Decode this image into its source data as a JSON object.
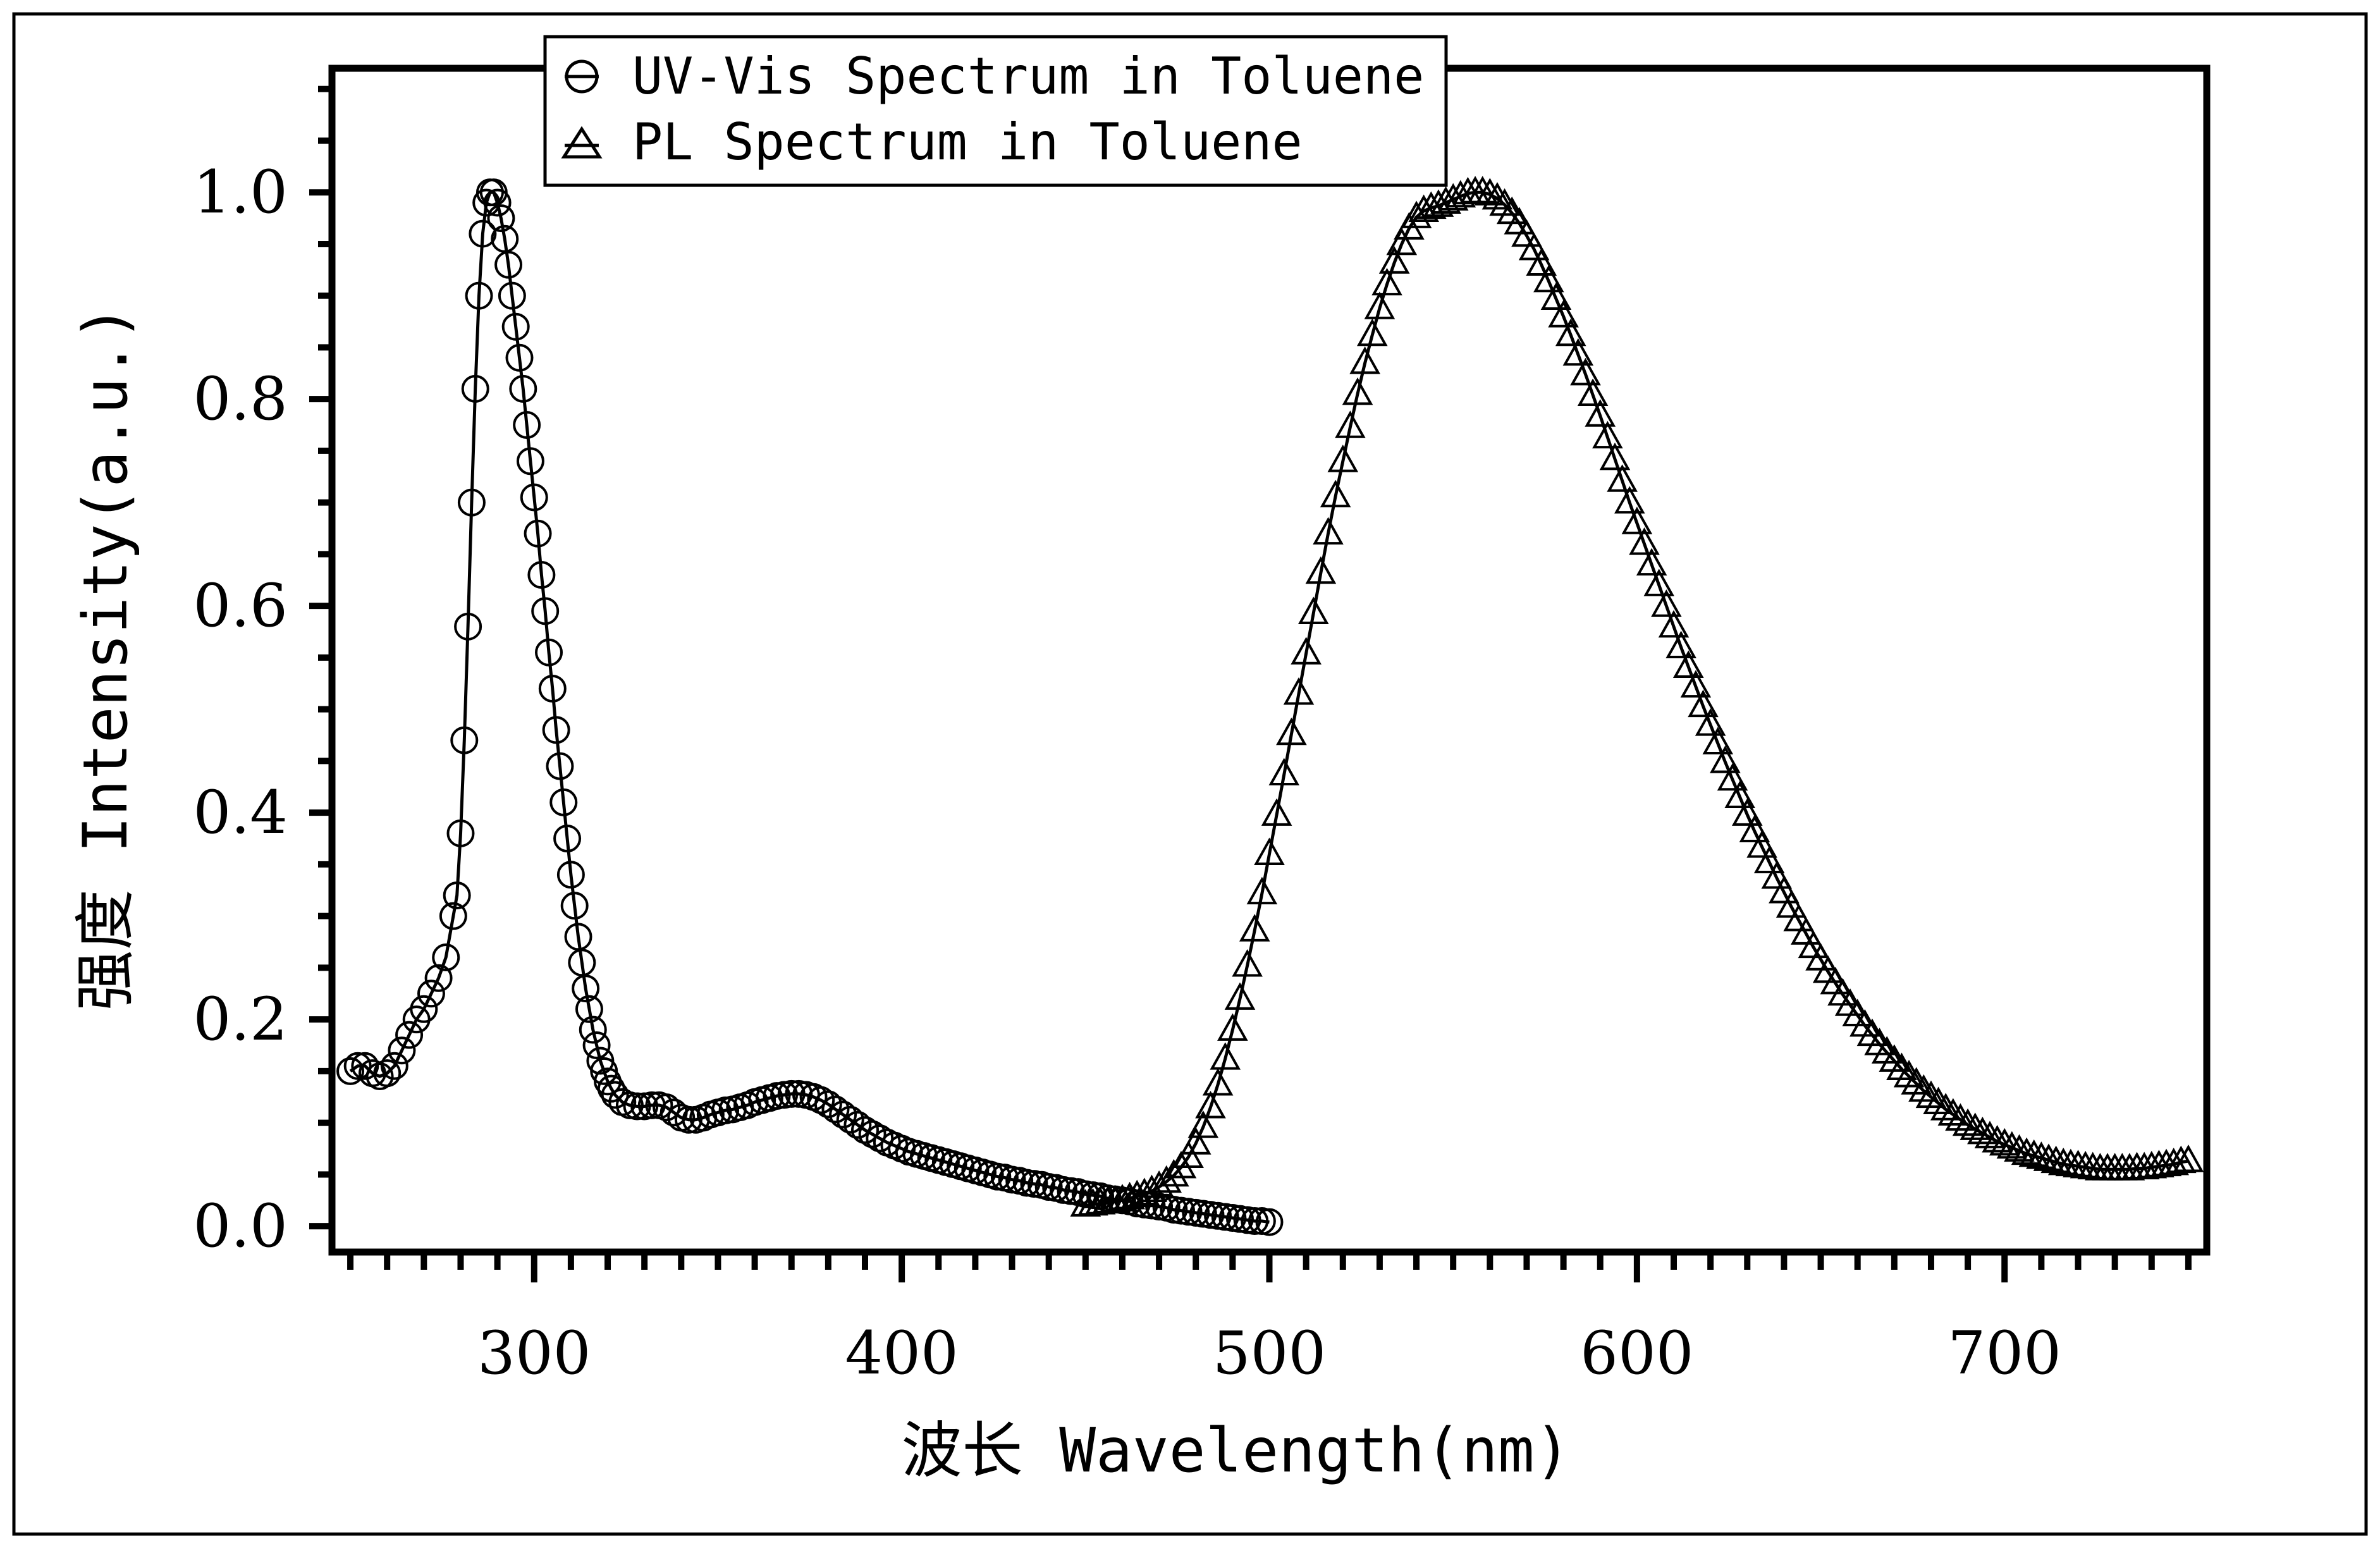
{
  "chart_data": {
    "type": "line",
    "xlabel": "波长 Wavelength(nm)",
    "ylabel": "强度 Intensity(a.u.)",
    "xlim": [
      245,
      755
    ],
    "ylim": [
      -0.025,
      1.12
    ],
    "x_ticks": [
      300,
      400,
      500,
      600,
      700
    ],
    "y_ticks": [
      0.0,
      0.2,
      0.4,
      0.6,
      0.8,
      1.0
    ],
    "x_tick_labels": [
      "300",
      "400",
      "500",
      "600",
      "700"
    ],
    "y_tick_labels": [
      "0.0",
      "0.2",
      "0.4",
      "0.6",
      "0.8",
      "1.0"
    ],
    "grid": false,
    "legend_position": "top-left",
    "series": [
      {
        "name": "UV-Vis Spectrum in Toluene",
        "marker": "circle",
        "color": "#000000",
        "x": [
          250,
          252,
          254,
          256,
          258,
          260,
          262,
          264,
          266,
          268,
          270,
          272,
          274,
          276,
          278,
          279,
          280,
          281,
          282,
          283,
          284,
          285,
          286,
          287,
          288,
          289,
          290,
          291,
          292,
          293,
          294,
          295,
          296,
          297,
          298,
          299,
          300,
          301,
          302,
          303,
          304,
          305,
          306,
          307,
          308,
          309,
          310,
          311,
          312,
          313,
          314,
          315,
          316,
          317,
          318,
          319,
          320,
          321,
          322,
          324,
          326,
          328,
          330,
          332,
          334,
          336,
          338,
          340,
          342,
          344,
          346,
          348,
          350,
          352,
          354,
          356,
          358,
          360,
          362,
          364,
          366,
          368,
          370,
          372,
          374,
          376,
          378,
          380,
          382,
          384,
          386,
          388,
          390,
          392,
          394,
          396,
          398,
          400,
          402,
          404,
          406,
          408,
          410,
          412,
          414,
          416,
          418,
          420,
          422,
          424,
          426,
          428,
          430,
          432,
          434,
          436,
          438,
          440,
          442,
          444,
          446,
          448,
          450,
          452,
          454,
          456,
          458,
          460,
          462,
          464,
          466,
          468,
          470,
          472,
          474,
          476,
          478,
          480,
          482,
          484,
          486,
          488,
          490,
          492,
          494,
          496,
          498,
          500
        ],
        "y": [
          0.15,
          0.155,
          0.155,
          0.148,
          0.145,
          0.148,
          0.155,
          0.17,
          0.185,
          0.2,
          0.21,
          0.225,
          0.24,
          0.26,
          0.3,
          0.32,
          0.38,
          0.47,
          0.58,
          0.7,
          0.81,
          0.9,
          0.96,
          0.99,
          1.0,
          1.0,
          0.99,
          0.975,
          0.955,
          0.93,
          0.9,
          0.87,
          0.84,
          0.81,
          0.775,
          0.74,
          0.705,
          0.67,
          0.63,
          0.595,
          0.555,
          0.52,
          0.48,
          0.445,
          0.41,
          0.375,
          0.34,
          0.31,
          0.28,
          0.255,
          0.23,
          0.21,
          0.19,
          0.175,
          0.16,
          0.15,
          0.14,
          0.133,
          0.127,
          0.12,
          0.117,
          0.116,
          0.116,
          0.117,
          0.117,
          0.115,
          0.11,
          0.105,
          0.103,
          0.103,
          0.105,
          0.108,
          0.11,
          0.112,
          0.113,
          0.115,
          0.117,
          0.12,
          0.122,
          0.124,
          0.126,
          0.127,
          0.128,
          0.128,
          0.127,
          0.125,
          0.122,
          0.118,
          0.113,
          0.108,
          0.103,
          0.098,
          0.093,
          0.089,
          0.085,
          0.081,
          0.078,
          0.075,
          0.072,
          0.07,
          0.068,
          0.066,
          0.064,
          0.062,
          0.06,
          0.058,
          0.056,
          0.054,
          0.052,
          0.05,
          0.048,
          0.047,
          0.045,
          0.044,
          0.042,
          0.041,
          0.04,
          0.038,
          0.037,
          0.035,
          0.034,
          0.033,
          0.031,
          0.03,
          0.029,
          0.027,
          0.026,
          0.025,
          0.024,
          0.022,
          0.021,
          0.02,
          0.019,
          0.018,
          0.016,
          0.015,
          0.014,
          0.013,
          0.012,
          0.011,
          0.01,
          0.009,
          0.008,
          0.007,
          0.006,
          0.005,
          0.005,
          0.004
        ]
      },
      {
        "name": "PL Spectrum in Toluene",
        "marker": "triangle",
        "color": "#000000",
        "x": [
          450,
          452,
          454,
          456,
          458,
          460,
          462,
          464,
          466,
          468,
          470,
          472,
          474,
          476,
          478,
          480,
          482,
          484,
          486,
          488,
          490,
          492,
          494,
          496,
          498,
          500,
          502,
          504,
          506,
          508,
          510,
          512,
          514,
          516,
          518,
          520,
          522,
          524,
          526,
          528,
          530,
          532,
          534,
          536,
          538,
          540,
          542,
          544,
          546,
          548,
          550,
          552,
          554,
          556,
          558,
          560,
          562,
          564,
          566,
          568,
          570,
          572,
          574,
          576,
          578,
          580,
          582,
          584,
          586,
          588,
          590,
          592,
          594,
          596,
          598,
          600,
          602,
          604,
          606,
          608,
          610,
          612,
          614,
          616,
          618,
          620,
          622,
          624,
          626,
          628,
          630,
          632,
          634,
          636,
          638,
          640,
          642,
          644,
          646,
          648,
          650,
          652,
          654,
          656,
          658,
          660,
          662,
          664,
          666,
          668,
          670,
          672,
          674,
          676,
          678,
          680,
          682,
          684,
          686,
          688,
          690,
          692,
          694,
          696,
          698,
          700,
          702,
          704,
          706,
          708,
          710,
          712,
          714,
          716,
          718,
          720,
          722,
          724,
          726,
          728,
          730,
          732,
          734,
          736,
          738,
          740,
          742,
          744,
          746,
          748,
          750
        ],
        "y": [
          0.02,
          0.021,
          0.022,
          0.023,
          0.024,
          0.025,
          0.027,
          0.029,
          0.031,
          0.034,
          0.038,
          0.043,
          0.049,
          0.057,
          0.067,
          0.08,
          0.096,
          0.115,
          0.137,
          0.162,
          0.19,
          0.22,
          0.252,
          0.286,
          0.322,
          0.36,
          0.398,
          0.437,
          0.476,
          0.515,
          0.554,
          0.593,
          0.632,
          0.67,
          0.706,
          0.74,
          0.773,
          0.805,
          0.835,
          0.862,
          0.888,
          0.911,
          0.932,
          0.95,
          0.965,
          0.976,
          0.982,
          0.985,
          0.987,
          0.99,
          0.993,
          0.996,
          0.999,
          1.0,
          1.0,
          0.998,
          0.994,
          0.988,
          0.98,
          0.97,
          0.958,
          0.945,
          0.93,
          0.914,
          0.897,
          0.88,
          0.862,
          0.843,
          0.824,
          0.804,
          0.784,
          0.763,
          0.742,
          0.721,
          0.7,
          0.68,
          0.66,
          0.64,
          0.62,
          0.6,
          0.58,
          0.56,
          0.541,
          0.522,
          0.503,
          0.485,
          0.467,
          0.449,
          0.432,
          0.415,
          0.398,
          0.382,
          0.367,
          0.352,
          0.337,
          0.323,
          0.309,
          0.296,
          0.283,
          0.27,
          0.258,
          0.246,
          0.235,
          0.224,
          0.214,
          0.204,
          0.194,
          0.185,
          0.176,
          0.168,
          0.16,
          0.152,
          0.145,
          0.138,
          0.131,
          0.125,
          0.119,
          0.113,
          0.108,
          0.103,
          0.098,
          0.094,
          0.09,
          0.086,
          0.082,
          0.079,
          0.076,
          0.073,
          0.07,
          0.068,
          0.066,
          0.064,
          0.062,
          0.06,
          0.059,
          0.058,
          0.057,
          0.056,
          0.055,
          0.055,
          0.055,
          0.055,
          0.055,
          0.056,
          0.056,
          0.057,
          0.058,
          0.059,
          0.06,
          0.062,
          0.063
        ]
      }
    ]
  }
}
